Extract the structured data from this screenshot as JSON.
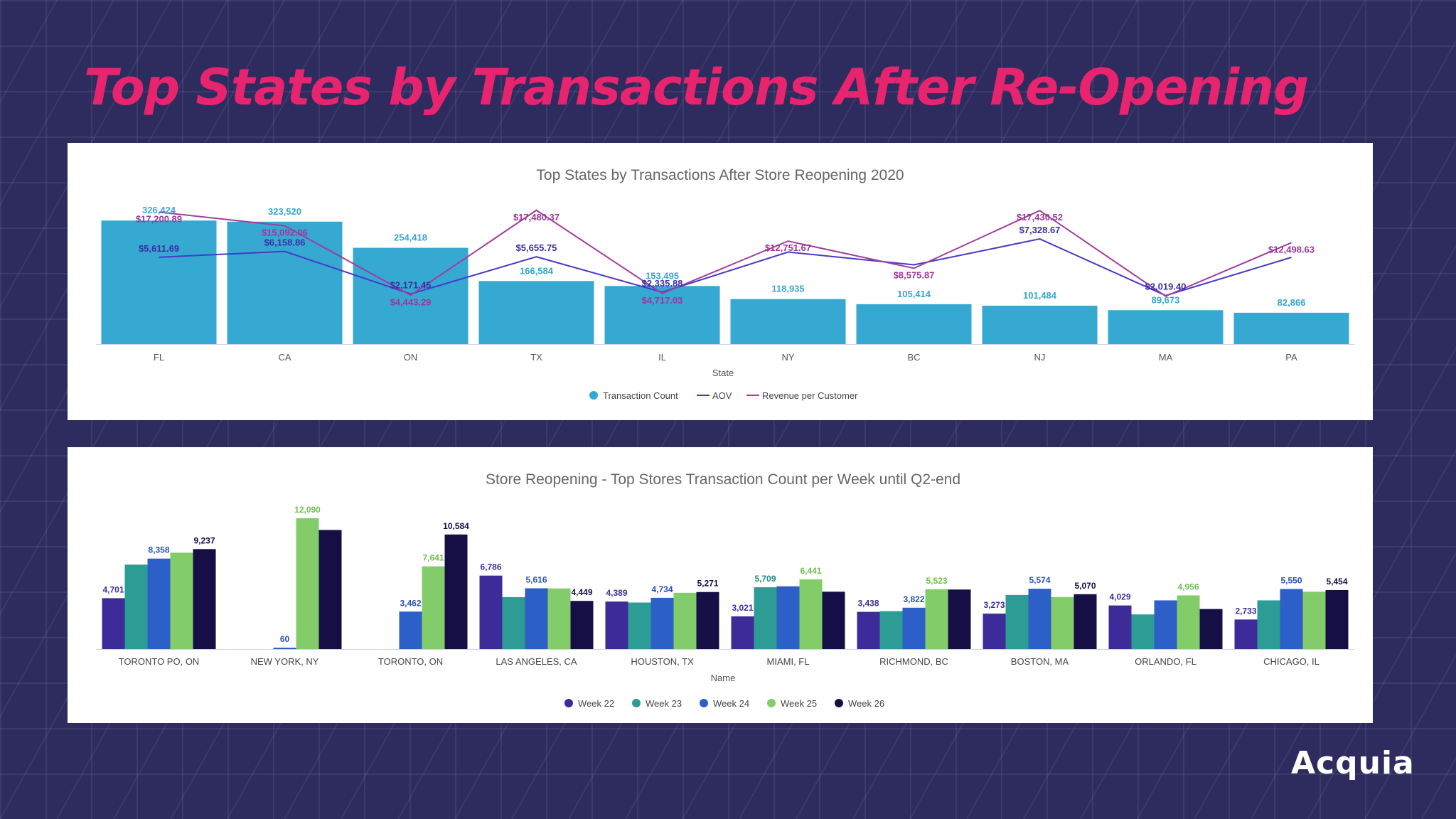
{
  "slide": {
    "title": "Top States by Transactions After Re-Opening",
    "brand": "Acquia"
  },
  "colors": {
    "title": "#e8246f",
    "background": "#2e2b5f",
    "transaction_bar": "#35a9d1",
    "aov_line": "#4a38c9",
    "revenue_line": "#a23c9f",
    "week22": "#3e2b9a",
    "week23": "#2d9c94",
    "week24": "#2d5fc8",
    "week25": "#82cc6a",
    "week26": "#160f45"
  },
  "chart_data": [
    {
      "type": "bar",
      "title": "Top States by Transactions After Store Reopening 2020",
      "xlabel": "State",
      "categories": [
        "FL",
        "CA",
        "ON",
        "TX",
        "IL",
        "NY",
        "BC",
        "NJ",
        "MA",
        "PA"
      ],
      "ylim": [
        0,
        340000
      ],
      "legend_position": "bottom-center",
      "series": [
        {
          "name": "Transaction Count",
          "type": "bar",
          "values": [
            326424,
            323520,
            254418,
            166584,
            153495,
            118935,
            105414,
            101484,
            89673,
            82866
          ],
          "labels": [
            "326,424",
            "323,520",
            "254,418",
            "166,584",
            "153,495",
            "118,935",
            "105,414",
            "101,484",
            "89,673",
            "82,866"
          ]
        },
        {
          "name": "AOV",
          "type": "line",
          "values": [
            5611.69,
            6158.86,
            2171.45,
            5655.75,
            2335.88,
            6100,
            4900,
            7328.67,
            2019.4,
            5600
          ],
          "labels": [
            "$5,611.69",
            "$6,158.86",
            "$2,171.45",
            "$5,655.75",
            "$2,335.88",
            "",
            "",
            "$7,328.67",
            "$2,019.40",
            ""
          ]
        },
        {
          "name": "Revenue per Customer",
          "type": "line",
          "values": [
            17200.89,
            15092.06,
            4443.29,
            17480.37,
            4717.03,
            12751.67,
            8575.87,
            17430.52,
            4300,
            12498.63
          ],
          "labels": [
            "$17,200.89",
            "$15,092.06",
            "$4,443.29",
            "$17,480.37",
            "$4,717.03",
            "$12,751.67",
            "$8,575.87",
            "$17,430.52",
            "",
            "$12,498.63"
          ]
        }
      ]
    },
    {
      "type": "bar",
      "title": "Store Reopening - Top Stores Transaction Count per Week until Q2-end",
      "xlabel": "Name",
      "categories": [
        "TORONTO PO, ON",
        "NEW YORK, NY",
        "TORONTO, ON",
        "LAS ANGELES, CA",
        "HOUSTON, TX",
        "MIAMI, FL",
        "RICHMOND, BC",
        "BOSTON, MA",
        "ORLANDO, FL",
        "CHICAGO, IL"
      ],
      "ylim": [
        0,
        13000
      ],
      "legend_position": "bottom-center",
      "series": [
        {
          "name": "Week 22",
          "values": [
            4701,
            0,
            0,
            6786,
            4389,
            3021,
            3438,
            3273,
            4029,
            2733
          ],
          "labels": [
            "4,701",
            "",
            "",
            "6,786",
            "4,389",
            "3,021",
            "3,438",
            "3,273",
            "4,029",
            "2,733"
          ]
        },
        {
          "name": "Week 23",
          "values": [
            7800,
            0,
            0,
            4800,
            4300,
            5709,
            3500,
            5000,
            3200,
            4500
          ],
          "labels": [
            "",
            "",
            "",
            "",
            "",
            "5,709",
            "",
            "",
            "",
            ""
          ]
        },
        {
          "name": "Week 24",
          "values": [
            8358,
            60,
            3462,
            5616,
            4734,
            5800,
            3822,
            5574,
            4500,
            5550
          ],
          "labels": [
            "8,358",
            "60",
            "3,462",
            "5,616",
            "4,734",
            "",
            "3,822",
            "5,574",
            "",
            "5,550"
          ]
        },
        {
          "name": "Week 25",
          "values": [
            8900,
            12090,
            7641,
            5600,
            5200,
            6441,
            5523,
            4800,
            4956,
            5300
          ],
          "labels": [
            "",
            "12,090",
            "7,641",
            "",
            "",
            "6,441",
            "5,523",
            "",
            "4,956",
            ""
          ]
        },
        {
          "name": "Week 26",
          "values": [
            9237,
            11000,
            10584,
            4449,
            5271,
            5300,
            5500,
            5070,
            3700,
            5454
          ],
          "labels": [
            "9,237",
            "",
            "10,584",
            "4,449",
            "5,271",
            "",
            "",
            "5,070",
            "",
            "5,454"
          ]
        }
      ]
    }
  ]
}
